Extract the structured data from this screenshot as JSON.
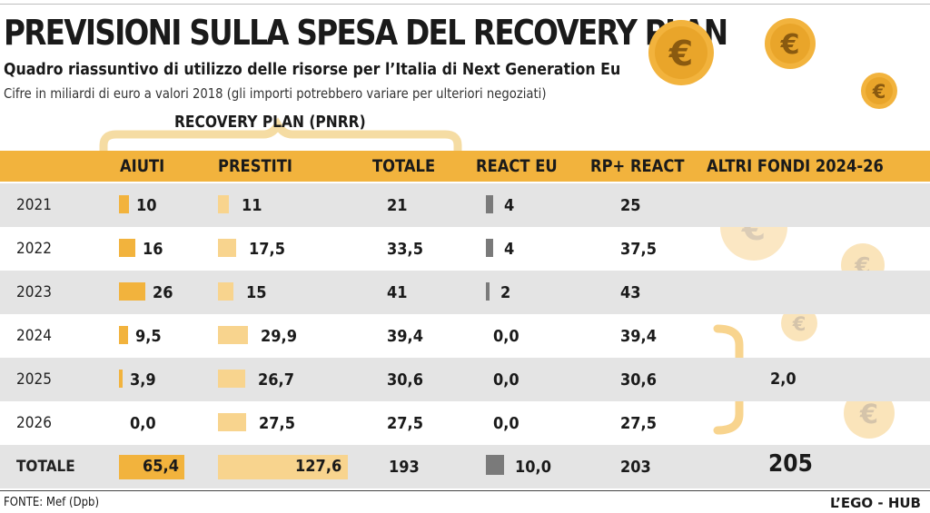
{
  "title": "PREVISIONI SULLA SPESA DEL RECOVERY PLAN",
  "subtitle": "Quadro riassuntivo di utilizzo delle risorse per l’Italia di Next Generation Eu",
  "note": "Cifre in miliardi di euro a valori 2018 (gli importi potrebbero variare per ulteriori negoziati)",
  "group_label": "RECOVERY PLAN (PNRR)",
  "headers": {
    "aiuti": "AIUTI",
    "prestiti": "PRESTITI",
    "totale": "TOTALE",
    "react": "REACT EU",
    "rp_react": "RP+ REACT",
    "altri": "ALTRI FONDI 2024-26"
  },
  "source": "FONTE: Mef (Dpb)",
  "credit": "L’EGO - HUB",
  "icons": [
    "euro-coin-icon"
  ],
  "colors": {
    "accent": "#f2b33d",
    "prestiti": "#f8d48e",
    "react": "#7a7a7a",
    "shade": "#e4e4e4"
  },
  "chart_data": {
    "type": "table",
    "title": "PREVISIONI SULLA SPESA DEL RECOVERY PLAN",
    "columns": [
      "",
      "AIUTI",
      "PRESTITI",
      "TOTALE",
      "REACT EU",
      "RP+ REACT",
      "ALTRI FONDI 2024-26"
    ],
    "rows": [
      {
        "label": "2021",
        "aiuti": "10",
        "prestiti": "11",
        "totale": "21",
        "react": "4",
        "rp_react": "25",
        "aiuti_v": 10,
        "prestiti_v": 11,
        "react_v": 4
      },
      {
        "label": "2022",
        "aiuti": "16",
        "prestiti": "17,5",
        "totale": "33,5",
        "react": "4",
        "rp_react": "37,5",
        "aiuti_v": 16,
        "prestiti_v": 17.5,
        "react_v": 4
      },
      {
        "label": "2023",
        "aiuti": "26",
        "prestiti": "15",
        "totale": "41",
        "react": "2",
        "rp_react": "43",
        "aiuti_v": 26,
        "prestiti_v": 15,
        "react_v": 2
      },
      {
        "label": "2024",
        "aiuti": "9,5",
        "prestiti": "29,9",
        "totale": "39,4",
        "react": "0,0",
        "rp_react": "39,4",
        "aiuti_v": 9.5,
        "prestiti_v": 29.9,
        "react_v": 0
      },
      {
        "label": "2025",
        "aiuti": "3,9",
        "prestiti": "26,7",
        "totale": "30,6",
        "react": "0,0",
        "rp_react": "30,6",
        "aiuti_v": 3.9,
        "prestiti_v": 26.7,
        "react_v": 0
      },
      {
        "label": "2026",
        "aiuti": "0,0",
        "prestiti": "27,5",
        "totale": "27,5",
        "react": "0,0",
        "rp_react": "27,5",
        "aiuti_v": 0,
        "prestiti_v": 27.5,
        "react_v": 0
      }
    ],
    "total_row": {
      "label": "TOTALE",
      "aiuti": "65,4",
      "prestiti": "127,6",
      "totale": "193",
      "react": "10,0",
      "rp_react": "203",
      "altri": "205",
      "aiuti_v": 65.4,
      "prestiti_v": 127.6,
      "react_v": 10
    },
    "altri_fondi_2024_26": "2,0"
  }
}
